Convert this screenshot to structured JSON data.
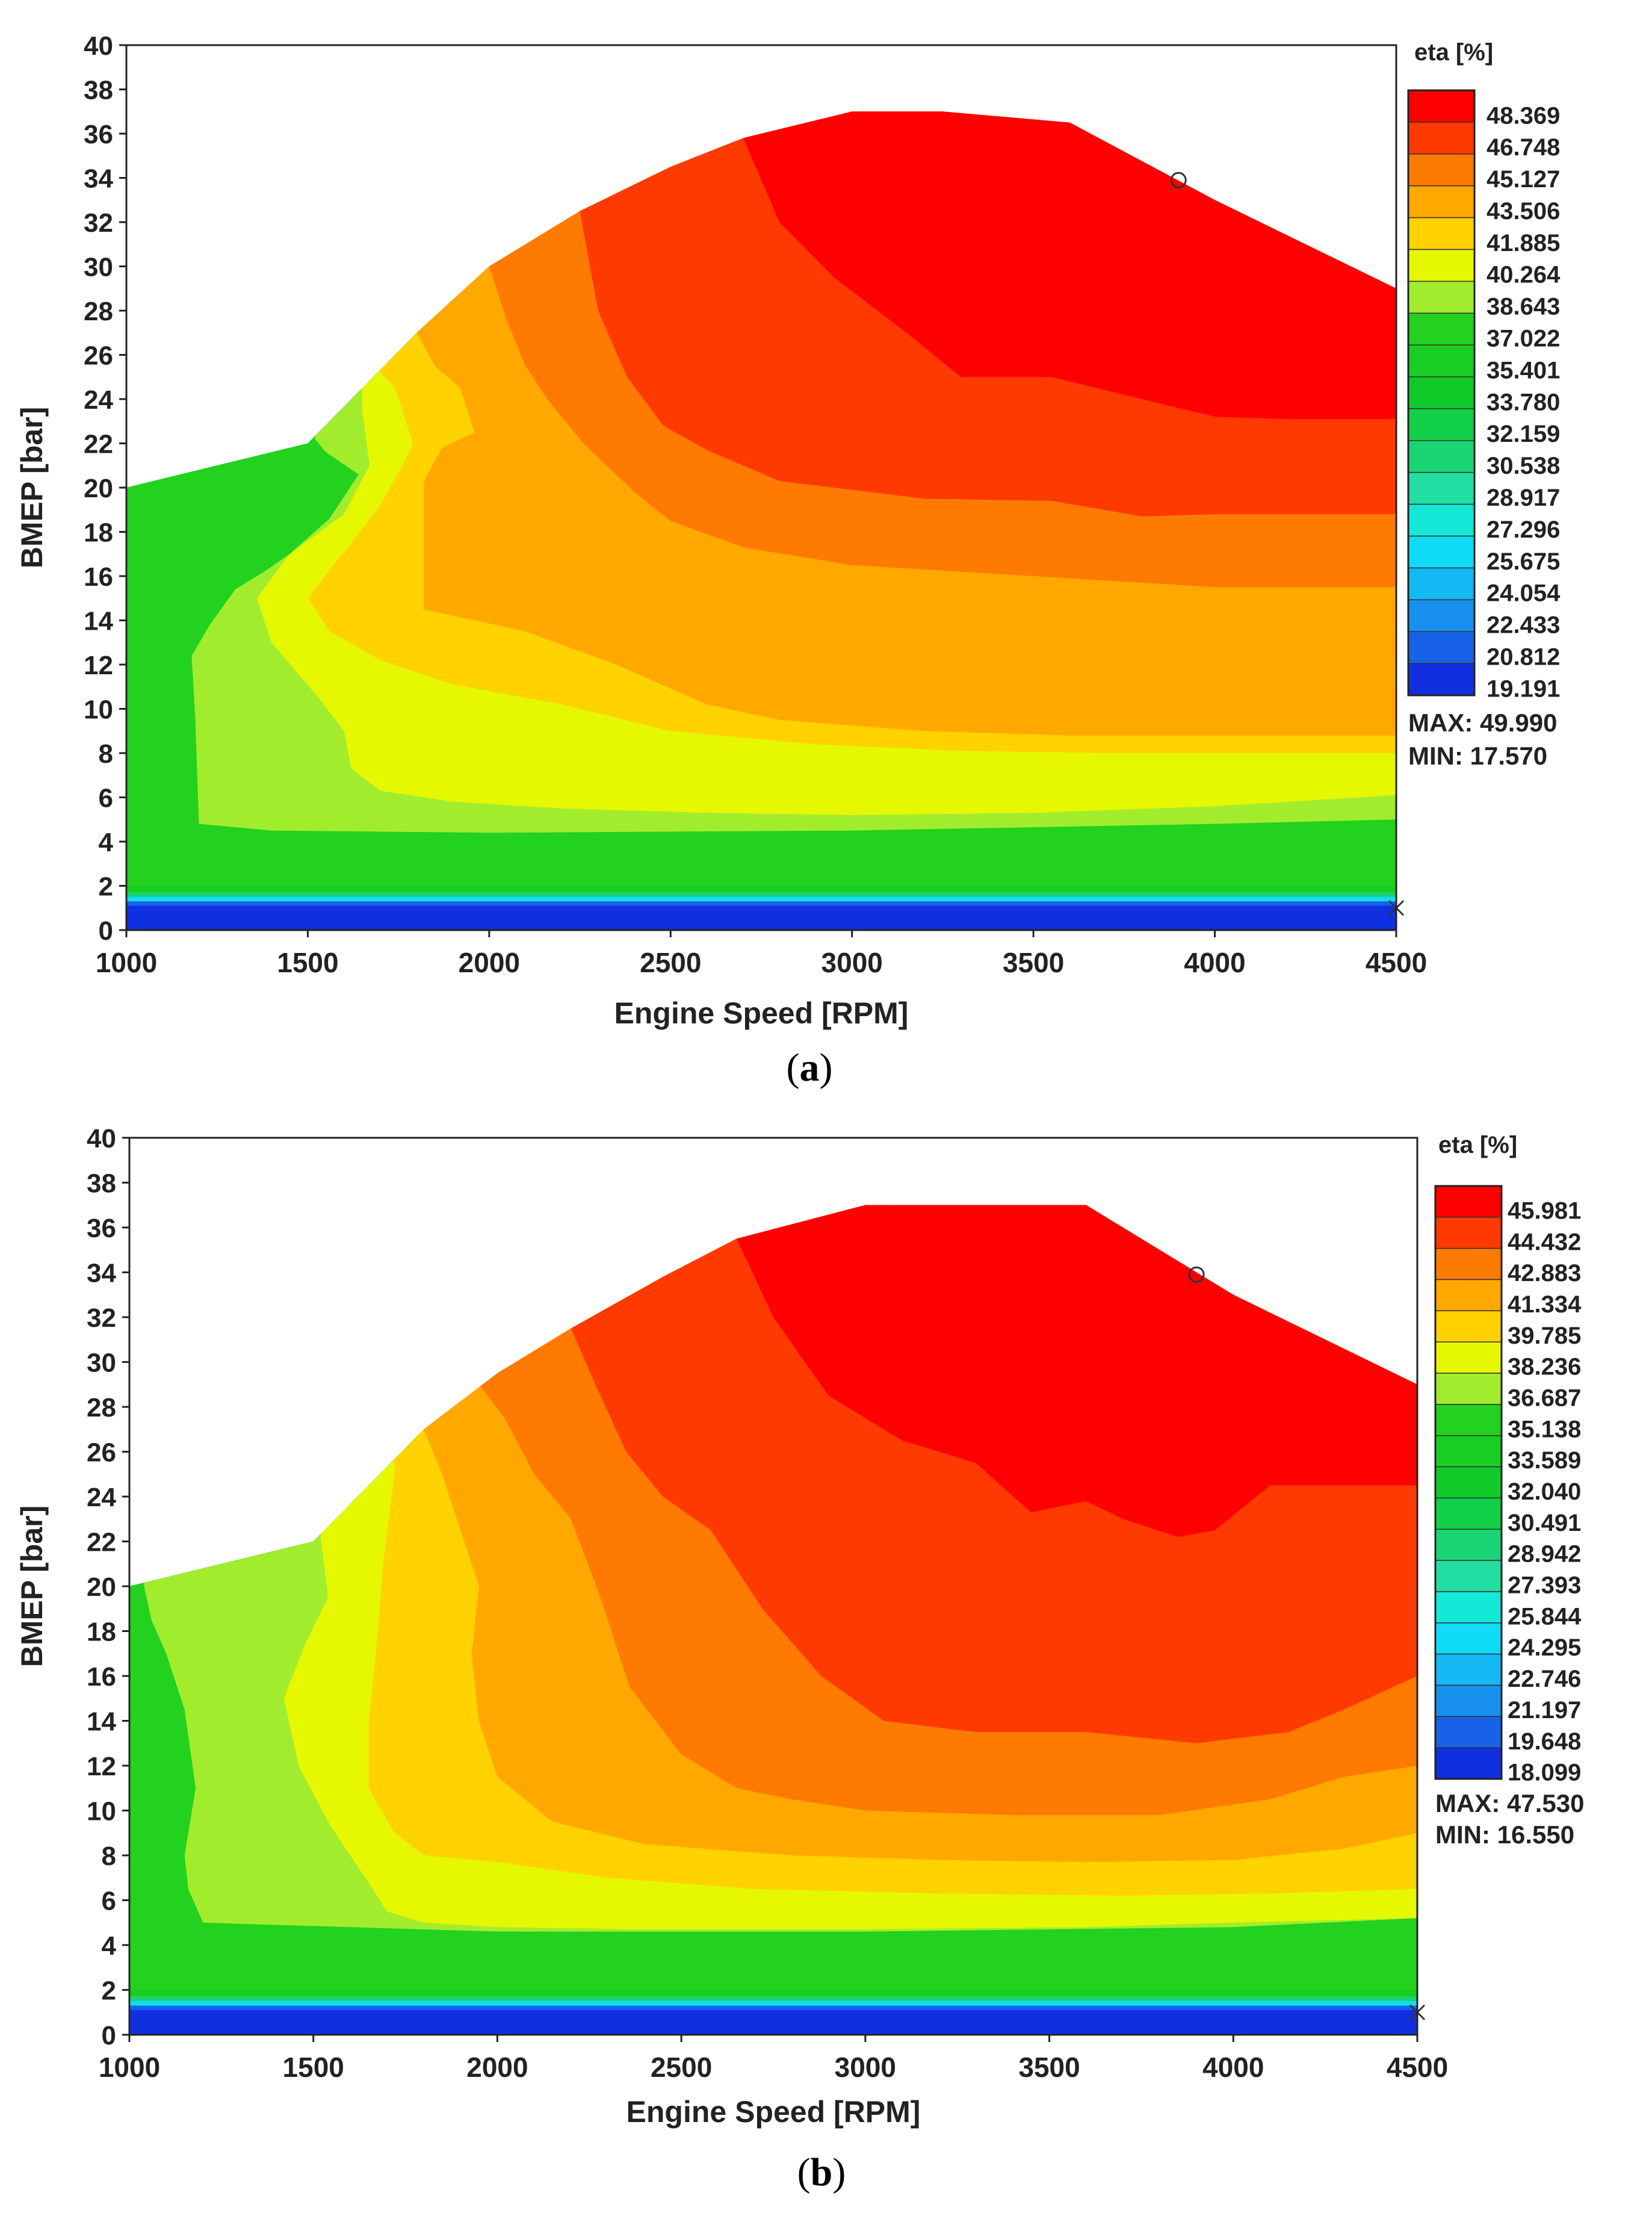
{
  "chart_data": [
    {
      "type": "heatmap",
      "subtype": "filled-contour",
      "caption_letter": "a",
      "xlabel": "Engine Speed [RPM]",
      "ylabel": "BMEP [bar]",
      "xlim": [
        1000,
        4500
      ],
      "ylim": [
        0,
        40
      ],
      "x_ticks": [
        "1000",
        "1500",
        "2000",
        "2500",
        "3000",
        "3500",
        "4000",
        "4500"
      ],
      "y_ticks": [
        "0",
        "2",
        "4",
        "6",
        "8",
        "10",
        "12",
        "14",
        "16",
        "18",
        "20",
        "22",
        "24",
        "26",
        "28",
        "30",
        "32",
        "34",
        "36",
        "38",
        "40"
      ],
      "legend_title": "eta [%]",
      "levels": [
        "48.369",
        "46.748",
        "45.127",
        "43.506",
        "41.885",
        "40.264",
        "38.643",
        "37.022",
        "35.401",
        "33.780",
        "32.159",
        "30.538",
        "28.917",
        "27.296",
        "25.675",
        "24.054",
        "22.433",
        "20.812",
        "19.191"
      ],
      "max_label": "MAX: 49.990",
      "min_label": "MIN: 17.570",
      "full_load_curve": {
        "rpm": [
          1000,
          1500,
          1800,
          2000,
          2250,
          2500,
          2700,
          3000,
          3250,
          3600,
          4000,
          4500
        ],
        "bmep": [
          20,
          22,
          27,
          30,
          32.5,
          34.5,
          35.8,
          37,
          37,
          36.5,
          33,
          29
        ]
      },
      "zones": [
        {
          "level": 0,
          "boundary": {
            "rpm": [
              2700,
              2800,
              2950,
              3150,
              3300,
              3550,
              3800,
              4000,
              4200,
              4500
            ],
            "bmep": [
              35.8,
              32,
              29.5,
              27,
              25,
              25,
              24,
              23.2,
              23.1,
              23.1
            ]
          }
        },
        {
          "level": 1,
          "boundary": {
            "rpm": [
              2250,
              2300,
              2380,
              2480,
              2600,
              2800,
              3200,
              3550,
              3800,
              4000,
              4200,
              4500
            ],
            "bmep": [
              32.5,
              28,
              25,
              22.8,
              21.7,
              20.3,
              19.5,
              19.4,
              18.7,
              18.8,
              18.8,
              18.8
            ]
          }
        },
        {
          "level": 2,
          "boundary": {
            "rpm": [
              2000,
              2050,
              2100,
              2160,
              2260,
              2400,
              2500,
              2700,
              3000,
              3500,
              3800,
              4000,
              4200,
              4500
            ],
            "bmep": [
              30,
              27.5,
              25.5,
              24,
              22,
              19.8,
              18.5,
              17.3,
              16.5,
              16,
              15.7,
              15.5,
              15.5,
              15.5
            ]
          }
        },
        {
          "level": 3,
          "boundary": {
            "rpm": [
              1800,
              1850,
              1920,
              1960,
              1870,
              1820,
              1820,
              2100,
              2350,
              2600,
              2800,
              3200,
              3600,
              4000,
              4500
            ],
            "bmep": [
              27,
              25.5,
              24.5,
              22.5,
              21.8,
              20.3,
              14.5,
              13.5,
              12,
              10.2,
              9.5,
              9,
              8.8,
              8.8,
              8.8
            ]
          }
        },
        {
          "level": 4,
          "boundary": {
            "rpm": [
              1700,
              1740,
              1790,
              1760,
              1700,
              1500,
              1560,
              1700,
              1900,
              2200,
              2500,
              2900,
              3300,
              3700,
              4100,
              4500
            ],
            "bmep": [
              25.2,
              24.5,
              22,
              21,
              19.2,
              15,
              13.5,
              12.2,
              11.1,
              10.2,
              9,
              8.4,
              8.1,
              8,
              8,
              8
            ]
          }
        },
        {
          "level": 5,
          "boundary": {
            "rpm": [
              1650,
              1660,
              1670,
              1600,
              1450,
              1360,
              1400,
              1530,
              1600,
              1620,
              1700,
              1900,
              2200,
              2600,
              3000,
              3500,
              4000,
              4500
            ],
            "bmep": [
              23.5,
              22.3,
              21,
              18.8,
              17,
              15,
              13,
              10.5,
              9,
              7.3,
              6.3,
              5.8,
              5.5,
              5.3,
              5.2,
              5.3,
              5.6,
              6.1
            ]
          }
        },
        {
          "level": 6,
          "boundary": {
            "rpm": [
              1520,
              1550,
              1640,
              1560,
              1450,
              1380,
              1300,
              1230,
              1180,
              1190,
              1200,
              1400,
              2000,
              3000,
              4000,
              4500
            ],
            "bmep": [
              22.2,
              21.6,
              20.6,
              18.6,
              17,
              16.2,
              15.4,
              13.8,
              12.4,
              9.5,
              4.8,
              4.5,
              4.4,
              4.5,
              4.8,
              5
            ]
          }
        },
        {
          "level": 7,
          "boundary": {
            "rpm": [
              1000,
              4500
            ],
            "bmep": [
              2,
              2
            ]
          }
        },
        {
          "level": 8,
          "boundary": {
            "rpm": [
              1000,
              4500
            ],
            "bmep": [
              1.7,
              1.7
            ]
          }
        },
        {
          "level": 11,
          "boundary": {
            "rpm": [
              1000,
              4500
            ],
            "bmep": [
              1.5,
              1.5
            ]
          }
        },
        {
          "level": 14,
          "boundary": {
            "rpm": [
              1000,
              4500
            ],
            "bmep": [
              1.3,
              1.3
            ]
          }
        },
        {
          "level": 17,
          "boundary": {
            "rpm": [
              1000,
              4500
            ],
            "bmep": [
              1.1,
              1.1
            ]
          }
        },
        {
          "level": 18,
          "boundary": {
            "rpm": [
              1000,
              4500
            ],
            "bmep": [
              1.0,
              1.0
            ]
          }
        }
      ],
      "markers": [
        {
          "shape": "circle",
          "rpm": 3900,
          "bmep": 33.9
        },
        {
          "shape": "x",
          "rpm": 4500,
          "bmep": 1.0
        }
      ]
    },
    {
      "type": "heatmap",
      "subtype": "filled-contour",
      "caption_letter": "b",
      "xlabel": "Engine Speed [RPM]",
      "ylabel": "BMEP [bar]",
      "xlim": [
        1000,
        4500
      ],
      "ylim": [
        0,
        40
      ],
      "x_ticks": [
        "1000",
        "1500",
        "2000",
        "2500",
        "3000",
        "3500",
        "4000",
        "4500"
      ],
      "y_ticks": [
        "0",
        "2",
        "4",
        "6",
        "8",
        "10",
        "12",
        "14",
        "16",
        "18",
        "20",
        "22",
        "24",
        "26",
        "28",
        "30",
        "32",
        "34",
        "36",
        "38",
        "40"
      ],
      "legend_title": "eta [%]",
      "levels": [
        "45.981",
        "44.432",
        "42.883",
        "41.334",
        "39.785",
        "38.236",
        "36.687",
        "35.138",
        "33.589",
        "32.040",
        "30.491",
        "28.942",
        "27.393",
        "25.844",
        "24.295",
        "22.746",
        "21.197",
        "19.648",
        "18.099"
      ],
      "max_label": "MAX: 47.530",
      "min_label": "MIN: 16.550",
      "full_load_curve": {
        "rpm": [
          1000,
          1500,
          1800,
          2000,
          2200,
          2450,
          2650,
          3000,
          3300,
          3600,
          4000,
          4500
        ],
        "bmep": [
          20,
          22,
          27,
          29.5,
          31.5,
          33.8,
          35.5,
          37,
          37,
          37,
          33,
          29
        ]
      },
      "zones": [
        {
          "level": 0,
          "boundary": {
            "rpm": [
              2650,
              2750,
              2900,
              3100,
              3300,
              3450,
              3600,
              3700,
              3850,
              3950,
              4100,
              4300,
              4500
            ],
            "bmep": [
              35.5,
              32,
              28.5,
              26.5,
              25.5,
              23.3,
              23.8,
              23,
              22.2,
              22.5,
              24.5,
              24.5,
              24.5
            ]
          }
        },
        {
          "level": 1,
          "boundary": {
            "rpm": [
              2200,
              2280,
              2350,
              2450,
              2580,
              2720,
              2880,
              3050,
              3300,
              3600,
              3900,
              4150,
              4300,
              4500
            ],
            "bmep": [
              31.5,
              28.5,
              26,
              24,
              22.5,
              19,
              16,
              14,
              13.5,
              13.5,
              13,
              13.5,
              14.5,
              16
            ]
          }
        },
        {
          "level": 2,
          "boundary": {
            "rpm": [
              1950,
              2020,
              2100,
              2200,
              2280,
              2360,
              2500,
              2650,
              2800,
              3000,
              3400,
              3800,
              4100,
              4300,
              4500
            ],
            "bmep": [
              29,
              27.5,
              25,
              23,
              19.5,
              15.5,
              12.5,
              11,
              10.5,
              10,
              9.8,
              9.8,
              10.5,
              11.5,
              12
            ]
          }
        },
        {
          "level": 3,
          "boundary": {
            "rpm": [
              1800,
              1850,
              1900,
              1950,
              1930,
              1950,
              2000,
              2150,
              2400,
              2800,
              3200,
              3600,
              4000,
              4300,
              4500
            ],
            "bmep": [
              27,
              25,
              22.5,
              20,
              17,
              14,
              11.5,
              9.5,
              8.5,
              8,
              7.8,
              7.7,
              7.8,
              8.3,
              9
            ]
          }
        },
        {
          "level": 4,
          "boundary": {
            "rpm": [
              1720,
              1690,
              1670,
              1650,
              1650,
              1720,
              1800,
              2000,
              2300,
              2700,
              3200,
              3700,
              4100,
              4500
            ],
            "bmep": [
              25,
              21,
              17,
              14,
              11,
              9,
              8,
              7.7,
              7,
              6.5,
              6.3,
              6.2,
              6.3,
              6.5
            ]
          }
        },
        {
          "level": 5,
          "boundary": {
            "rpm": [
              1520,
              1540,
              1480,
              1420,
              1460,
              1540,
              1600,
              1650,
              1700,
              1800,
              2000,
              2400,
              3000,
              3600,
              4000,
              4500
            ],
            "bmep": [
              22.2,
              19.5,
              17.5,
              15,
              12,
              9.5,
              8,
              6.8,
              5.5,
              5,
              4.8,
              4.7,
              4.7,
              4.8,
              5,
              5.2
            ]
          }
        },
        {
          "level": 6,
          "boundary": {
            "rpm": [
              1040,
              1060,
              1100,
              1150,
              1180,
              1150,
              1160,
              1200,
              1400,
              2000,
              3000,
              4000,
              4500
            ],
            "bmep": [
              20,
              18.5,
              17,
              14.5,
              11,
              8,
              6.5,
              5,
              4.9,
              4.6,
              4.6,
              4.8,
              5.2
            ]
          }
        },
        {
          "level": 7,
          "boundary": {
            "rpm": [
              1000,
              4500
            ],
            "bmep": [
              2,
              2
            ]
          }
        },
        {
          "level": 8,
          "boundary": {
            "rpm": [
              1000,
              4500
            ],
            "bmep": [
              1.7,
              1.7
            ]
          }
        },
        {
          "level": 11,
          "boundary": {
            "rpm": [
              1000,
              4500
            ],
            "bmep": [
              1.5,
              1.5
            ]
          }
        },
        {
          "level": 14,
          "boundary": {
            "rpm": [
              1000,
              4500
            ],
            "bmep": [
              1.3,
              1.3
            ]
          }
        },
        {
          "level": 17,
          "boundary": {
            "rpm": [
              1000,
              4500
            ],
            "bmep": [
              1.1,
              1.1
            ]
          }
        },
        {
          "level": 18,
          "boundary": {
            "rpm": [
              1000,
              4500
            ],
            "bmep": [
              1.0,
              1.0
            ]
          }
        }
      ],
      "markers": [
        {
          "shape": "circle",
          "rpm": 3900,
          "bmep": 33.9
        },
        {
          "shape": "x",
          "rpm": 4500,
          "bmep": 1.0
        }
      ]
    }
  ],
  "colors": {
    "scale": [
      "#ff0000",
      "#ff3a00",
      "#ff7a00",
      "#ffa800",
      "#ffd200",
      "#e6f800",
      "#a2ec2e",
      "#22d21e",
      "#18ce22",
      "#10ca2a",
      "#12d048",
      "#1ad474",
      "#22dea2",
      "#14e8d6",
      "#10dcf8",
      "#14b8f4",
      "#1890ee",
      "#1862e8",
      "#1030e0"
    ],
    "axis": "#222222"
  }
}
